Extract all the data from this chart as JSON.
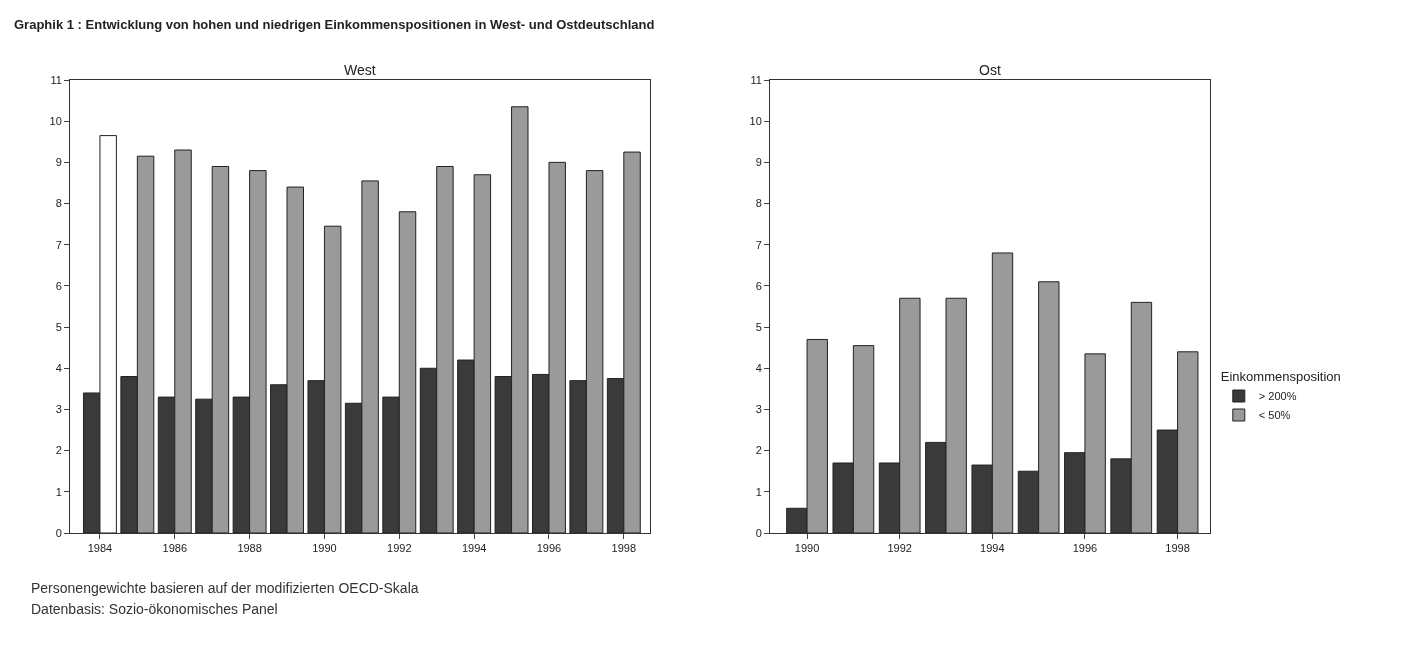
{
  "chart_data": [
    {
      "type": "bar",
      "title": "Graphik 1 : Entwicklung von hohen und niedrigen Einkommenspositionen in West- und Ostdeutschland",
      "subtitle": "West",
      "x": [
        1984,
        1985,
        1986,
        1987,
        1988,
        1989,
        1990,
        1991,
        1992,
        1993,
        1994,
        1995,
        1996,
        1997,
        1998
      ],
      "series": [
        {
          "color": "#3a3a3a",
          "values": [
            3.4,
            3.8,
            3.3,
            3.25,
            3.3,
            3.6,
            3.7,
            3.15,
            3.3,
            4.0,
            4.2,
            3.8,
            3.85,
            3.7,
            3.75
          ]
        },
        {
          "colors": [
            "#ffffff",
            "#9a9a9a",
            "#9a9a9a",
            "#9a9a9a",
            "#9a9a9a",
            "#9a9a9a",
            "#9a9a9a",
            "#9a9a9a",
            "#9a9a9a",
            "#9a9a9a",
            "#9a9a9a",
            "#9a9a9a",
            "#9a9a9a",
            "#9a9a9a",
            "#9a9a9a"
          ],
          "values": [
            9.65,
            9.15,
            9.3,
            8.9,
            8.8,
            8.4,
            7.45,
            8.55,
            7.8,
            8.9,
            8.7,
            10.35,
            9.0,
            8.8,
            9.25
          ]
        }
      ],
      "xlim": [
        1983.2,
        1998.7
      ],
      "xticks": [
        1984,
        1986,
        1988,
        1990,
        1992,
        1994,
        1996,
        1998
      ],
      "ylim": [
        0,
        11
      ],
      "yticks": [
        0,
        1,
        2,
        3,
        4,
        5,
        6,
        7,
        8,
        9,
        10,
        11
      ],
      "grid": false,
      "legend": false,
      "annotations": [
        "Personengewichte basieren auf der modifizierten OECD-Skala",
        "Datenbasis: Sozio-ökonomisches Panel"
      ]
    },
    {
      "type": "bar",
      "title": "Ost",
      "x": [
        1990,
        1991,
        1992,
        1993,
        1994,
        1995,
        1996,
        1997,
        1998
      ],
      "series": [
        {
          "name": "> 200%",
          "color": "#3a3a3a",
          "values": [
            0.6,
            1.7,
            1.7,
            2.2,
            1.65,
            1.5,
            1.95,
            1.8,
            2.5
          ]
        },
        {
          "name": "< 50%",
          "color": "#9a9a9a",
          "values": [
            4.7,
            4.55,
            5.7,
            5.7,
            6.8,
            6.1,
            4.35,
            5.6,
            4.4
          ]
        }
      ],
      "xlim": [
        1989.2,
        1998.7
      ],
      "xticks": [
        1990,
        1992,
        1994,
        1996,
        1998
      ],
      "ylim": [
        0,
        11
      ],
      "yticks": [
        0,
        1,
        2,
        3,
        4,
        5,
        6,
        7,
        8,
        9,
        10,
        11
      ],
      "grid": false,
      "legend": "right",
      "legend_title": "Einkommensposition"
    }
  ]
}
